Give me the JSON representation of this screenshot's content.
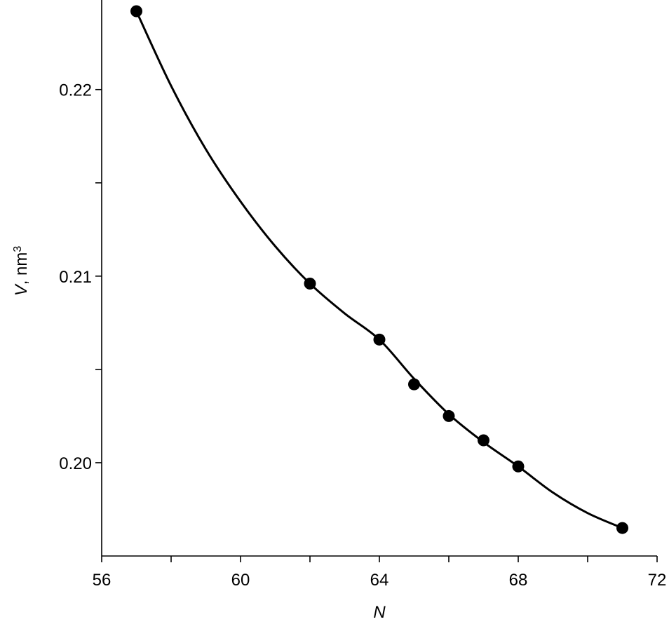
{
  "chart_data": {
    "type": "line",
    "title": "",
    "xlabel": "N",
    "ylabel_var": "V",
    "ylabel_sep": ", ",
    "ylabel_unit": "nm",
    "ylabel_sup": "3",
    "xlim": [
      56,
      72
    ],
    "ylim": [
      0.195,
      0.2248
    ],
    "x_major_ticks": [
      56,
      60,
      64,
      68,
      72
    ],
    "x_minor_ticks": [
      58,
      62,
      66,
      70
    ],
    "x_tick_labels": [
      "56",
      "60",
      "64",
      "68",
      "72"
    ],
    "y_major_ticks": [
      0.2,
      0.21,
      0.22
    ],
    "y_minor_ticks": [
      0.205,
      0.215
    ],
    "y_tick_labels": [
      "0.20",
      "0.21",
      "0.22"
    ],
    "grid": false,
    "legend": "none",
    "series": [
      {
        "points": [
          {
            "x": 57,
            "y": 0.2242
          },
          {
            "x": 62,
            "y": 0.2096
          },
          {
            "x": 64,
            "y": 0.2066
          },
          {
            "x": 65,
            "y": 0.2042
          },
          {
            "x": 66,
            "y": 0.2025
          },
          {
            "x": 67,
            "y": 0.2012
          },
          {
            "x": 68,
            "y": 0.1998
          },
          {
            "x": 71,
            "y": 0.1965
          }
        ],
        "fit_curve": [
          {
            "x": 57,
            "y": 0.2242
          },
          {
            "x": 58,
            "y": 0.2202
          },
          {
            "x": 59,
            "y": 0.2168
          },
          {
            "x": 60,
            "y": 0.214
          },
          {
            "x": 61,
            "y": 0.2116
          },
          {
            "x": 62,
            "y": 0.2096
          },
          {
            "x": 63,
            "y": 0.208
          },
          {
            "x": 64,
            "y": 0.2066
          },
          {
            "x": 65,
            "y": 0.2045
          },
          {
            "x": 66,
            "y": 0.2026
          },
          {
            "x": 67,
            "y": 0.2011
          },
          {
            "x": 68,
            "y": 0.1998
          },
          {
            "x": 69,
            "y": 0.1984
          },
          {
            "x": 70,
            "y": 0.1973
          },
          {
            "x": 71,
            "y": 0.1965
          }
        ],
        "color": "#000000"
      }
    ]
  }
}
